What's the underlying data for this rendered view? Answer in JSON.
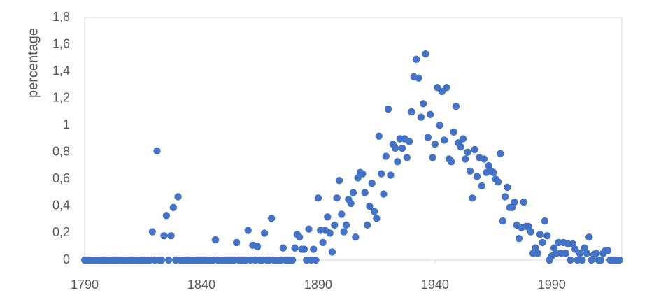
{
  "chart_data": {
    "type": "scatter",
    "y_label": "percentage",
    "color": "#4472c4",
    "xlim": [
      1790,
      2020
    ],
    "ylim": [
      0,
      1.8
    ],
    "xticks": [
      1790,
      1840,
      1890,
      1940,
      1990
    ],
    "yticks": [
      0,
      {
        "value": 0.2,
        "label": "0,2"
      },
      {
        "value": 0.4,
        "label": "0,4"
      },
      {
        "value": 0.6,
        "label": "0,6"
      },
      {
        "value": 0.8,
        "label": "0,8"
      },
      1,
      {
        "value": 1.2,
        "label": "1,2"
      },
      {
        "value": 1.4,
        "label": "1,4"
      },
      {
        "value": 1.6,
        "label": "1,6"
      },
      {
        "value": 1.8,
        "label": "1,8"
      }
    ],
    "grid": false,
    "x": [
      1790,
      1791,
      1792,
      1793,
      1794,
      1795,
      1796,
      1797,
      1798,
      1799,
      1800,
      1801,
      1802,
      1803,
      1804,
      1805,
      1806,
      1807,
      1808,
      1809,
      1810,
      1811,
      1812,
      1813,
      1814,
      1815,
      1816,
      1817,
      1818,
      1819,
      1820,
      1821,
      1822,
      1823,
      1824,
      1825,
      1826,
      1827,
      1828,
      1829,
      1830,
      1831,
      1832,
      1833,
      1834,
      1835,
      1836,
      1837,
      1838,
      1839,
      1840,
      1841,
      1842,
      1843,
      1844,
      1845,
      1846,
      1847,
      1848,
      1849,
      1850,
      1851,
      1852,
      1853,
      1854,
      1855,
      1856,
      1857,
      1858,
      1859,
      1860,
      1861,
      1862,
      1863,
      1864,
      1865,
      1866,
      1867,
      1868,
      1869,
      1870,
      1871,
      1872,
      1873,
      1874,
      1875,
      1876,
      1877,
      1878,
      1879,
      1880,
      1881,
      1882,
      1883,
      1884,
      1885,
      1886,
      1887,
      1888,
      1889,
      1890,
      1891,
      1892,
      1893,
      1894,
      1895,
      1896,
      1897,
      1898,
      1899,
      1900,
      1901,
      1902,
      1903,
      1904,
      1905,
      1906,
      1907,
      1908,
      1909,
      1910,
      1911,
      1912,
      1913,
      1914,
      1915,
      1916,
      1917,
      1918,
      1919,
      1920,
      1921,
      1922,
      1923,
      1924,
      1925,
      1926,
      1927,
      1928,
      1929,
      1930,
      1931,
      1932,
      1933,
      1934,
      1935,
      1936,
      1937,
      1938,
      1939,
      1940,
      1941,
      1942,
      1943,
      1944,
      1945,
      1946,
      1947,
      1948,
      1949,
      1950,
      1951,
      1952,
      1953,
      1954,
      1955,
      1956,
      1957,
      1958,
      1959,
      1960,
      1961,
      1962,
      1963,
      1964,
      1965,
      1966,
      1967,
      1968,
      1969,
      1970,
      1971,
      1972,
      1973,
      1974,
      1975,
      1976,
      1977,
      1978,
      1979,
      1980,
      1981,
      1982,
      1983,
      1984,
      1985,
      1986,
      1987,
      1988,
      1989,
      1990,
      1991,
      1992,
      1993,
      1994,
      1995,
      1996,
      1997,
      1998,
      1999,
      2000,
      2001,
      2002,
      2003,
      2004,
      2005,
      2006,
      2007,
      2008,
      2009,
      2010,
      2011,
      2012,
      2013,
      2014,
      2015,
      2016,
      2017,
      2018,
      2019
    ],
    "values": [
      0,
      0,
      0,
      0,
      0,
      0,
      0,
      0,
      0,
      0,
      0,
      0,
      0,
      0,
      0,
      0,
      0,
      0,
      0,
      0,
      0,
      0,
      0,
      0,
      0,
      0,
      0,
      0,
      0,
      0.21,
      0,
      0.81,
      0,
      0,
      0.18,
      0.33,
      0,
      0.18,
      0.39,
      0,
      0.47,
      0,
      0,
      0,
      0,
      0,
      0,
      0,
      0,
      0,
      0,
      0,
      0,
      0,
      0,
      0,
      0.15,
      0,
      0,
      0,
      0,
      0,
      0,
      0,
      0,
      0.13,
      0,
      0,
      0,
      0,
      0.22,
      0,
      0.11,
      0,
      0.1,
      0,
      0,
      0.2,
      0,
      0,
      0.31,
      0,
      0,
      0,
      0,
      0.09,
      0,
      0,
      0,
      0,
      0.09,
      0.19,
      0.17,
      0.08,
      0.08,
      0,
      0.23,
      0,
      0.08,
      0,
      0.46,
      0.22,
      0.13,
      0.22,
      0.32,
      0.2,
      0.06,
      0.26,
      0.46,
      0.59,
      0.34,
      0.21,
      0.26,
      0.45,
      0.42,
      0.5,
      0.17,
      0.61,
      0.65,
      0.64,
      0.5,
      0.26,
      0.4,
      0.57,
      0.36,
      0.31,
      0.92,
      0.64,
      0.49,
      0.77,
      1.12,
      0.63,
      0.86,
      0.83,
      0.73,
      0.9,
      0.83,
      0.9,
      0.76,
      0.88,
      1.1,
      1.36,
      1.49,
      1.35,
      1.06,
      1.16,
      1.53,
      0.91,
      1.08,
      0.76,
      0.86,
      1.28,
      1.0,
      1.25,
      0.89,
      1.28,
      0.75,
      0.73,
      0.95,
      1.14,
      0.87,
      0.84,
      0.9,
      0.75,
      0.8,
      0.66,
      0.46,
      0.82,
      0.62,
      0.76,
      0.55,
      0.75,
      0.65,
      0.7,
      0.66,
      0.65,
      0.6,
      0.58,
      0.79,
      0.29,
      0.47,
      0.54,
      0.39,
      0.39,
      0.43,
      0.26,
      0.16,
      0.24,
      0.43,
      0.25,
      0.25,
      0.21,
      0.05,
      0.09,
      0.05,
      0.19,
      0.13,
      0.29,
      0.18,
      0,
      0.03,
      0.09,
      0.05,
      0.13,
      0.05,
      0.13,
      0.05,
      0.12,
      0,
      0.12,
      0.08,
      0,
      0.05,
      0,
      0.09,
      0.05,
      0.17,
      0,
      0.04,
      0.05,
      0,
      0,
      0.05,
      0.07,
      0.07,
      0,
      0,
      0,
      0,
      0
    ]
  }
}
